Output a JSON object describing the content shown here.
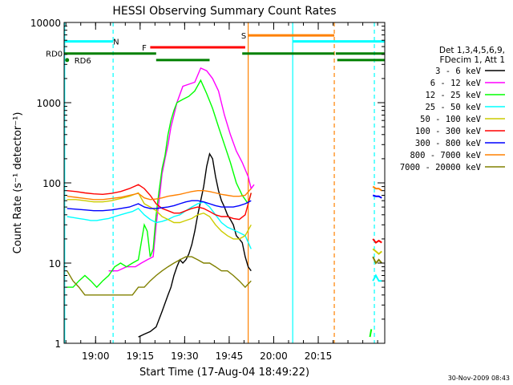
{
  "chart_data": {
    "type": "line",
    "title": "HESSI Observing Summary Count Rates",
    "xlabel": "Start Time (17-Aug-04 18:49:22)",
    "ylabel": "Count Rate (s⁻¹ detector⁻¹)",
    "x_unit": "minutes since 18:49:22",
    "xlim": [
      0,
      108
    ],
    "ylim": [
      1,
      10000
    ],
    "y_scale": "log",
    "x_ticks": [
      {
        "label": "19:00",
        "value": 10.6
      },
      {
        "label": "19:15",
        "value": 25.6
      },
      {
        "label": "19:30",
        "value": 40.6
      },
      {
        "label": "19:45",
        "value": 55.6
      },
      {
        "label": "20:00",
        "value": 70.6
      },
      {
        "label": "20:15",
        "value": 85.6
      }
    ],
    "y_ticks": [
      {
        "label": "1",
        "value": 1
      },
      {
        "label": "10",
        "value": 10
      },
      {
        "label": "100",
        "value": 100
      },
      {
        "label": "1000",
        "value": 1000
      },
      {
        "label": "10000",
        "value": 10000
      }
    ],
    "legend_header": [
      "Det 1,3,4,5,6,9,",
      "FDecim 1, Att 1"
    ],
    "footer_date": "30-Nov-2009 08:43",
    "series": [
      {
        "name": "3 - 6 keV",
        "color": "#000000",
        "x": [
          25,
          27,
          29,
          31,
          33,
          35,
          36,
          37,
          38,
          39,
          40,
          41,
          42,
          43,
          44,
          45,
          46,
          47,
          48,
          49,
          50,
          51,
          52,
          53,
          54,
          55,
          56,
          57,
          58,
          59,
          60,
          61,
          62,
          63
        ],
        "y": [
          1.2,
          1.3,
          1.4,
          1.6,
          2.5,
          4,
          5,
          7,
          9,
          11,
          10,
          11,
          13,
          17,
          25,
          40,
          60,
          90,
          160,
          230,
          200,
          120,
          80,
          60,
          50,
          40,
          35,
          30,
          22,
          20,
          18,
          12,
          9,
          8
        ]
      },
      {
        "name": "6 - 12 keV",
        "color": "#ff00ff",
        "x": [
          15,
          18,
          21,
          24,
          26,
          28,
          30,
          31,
          32,
          33,
          34,
          35,
          36,
          37,
          38,
          40,
          42,
          44,
          46,
          48,
          50,
          52,
          54,
          56,
          58,
          60,
          62,
          63,
          64
        ],
        "y": [
          8,
          8,
          9,
          9,
          10,
          11,
          12,
          30,
          60,
          130,
          200,
          300,
          500,
          700,
          1000,
          1600,
          1700,
          1800,
          2700,
          2500,
          2000,
          1400,
          700,
          400,
          250,
          180,
          120,
          85,
          95
        ]
      },
      {
        "name": "12 - 25 keV",
        "color": "#00ff00",
        "x": [
          1,
          3,
          5,
          7,
          9,
          11,
          13,
          15,
          17,
          19,
          21,
          23,
          25,
          27,
          28,
          29,
          30,
          31,
          32,
          33,
          34,
          35,
          36,
          37,
          38,
          40,
          42,
          44,
          46,
          48,
          50,
          52,
          54,
          56,
          58,
          60,
          62,
          63
        ],
        "y": [
          5,
          5,
          6,
          7,
          6,
          5,
          6,
          7,
          9,
          10,
          9,
          10,
          11,
          30,
          25,
          12,
          15,
          40,
          80,
          150,
          220,
          400,
          600,
          800,
          1000,
          1100,
          1200,
          1400,
          1900,
          1300,
          850,
          500,
          300,
          180,
          100,
          70,
          55,
          75
        ]
      },
      {
        "name": "25 - 50 keV",
        "color": "#00ffff",
        "x": [
          1,
          3,
          5,
          7,
          9,
          11,
          13,
          15,
          17,
          19,
          21,
          23,
          25,
          27,
          29,
          31,
          33,
          35,
          37,
          39,
          41,
          43,
          45,
          47,
          49,
          51,
          53,
          55,
          57,
          59,
          61,
          63
        ],
        "y": [
          38,
          37,
          36,
          35,
          34,
          34,
          35,
          36,
          38,
          40,
          42,
          44,
          48,
          40,
          35,
          32,
          33,
          35,
          38,
          40,
          45,
          50,
          55,
          58,
          50,
          40,
          32,
          28,
          26,
          24,
          22,
          15
        ]
      },
      {
        "name": "50 - 100 keV",
        "color": "#cccc00",
        "x": [
          1,
          4,
          7,
          10,
          13,
          16,
          19,
          22,
          25,
          27,
          29,
          31,
          33,
          35,
          37,
          39,
          41,
          43,
          45,
          47,
          49,
          51,
          53,
          55,
          57,
          59,
          61,
          63
        ],
        "y": [
          62,
          62,
          60,
          58,
          58,
          60,
          64,
          68,
          75,
          55,
          50,
          45,
          38,
          35,
          32,
          32,
          34,
          36,
          40,
          42,
          38,
          30,
          25,
          22,
          20,
          20,
          22,
          30
        ]
      },
      {
        "name": "100 - 300 keV",
        "color": "#ff0000",
        "x": [
          1,
          4,
          7,
          10,
          13,
          16,
          19,
          22,
          25,
          27,
          29,
          31,
          33,
          35,
          37,
          39,
          41,
          43,
          45,
          47,
          49,
          51,
          53,
          55,
          57,
          59,
          61,
          63
        ],
        "y": [
          80,
          78,
          75,
          73,
          72,
          74,
          78,
          85,
          95,
          85,
          70,
          55,
          48,
          45,
          42,
          42,
          45,
          48,
          50,
          48,
          44,
          40,
          38,
          38,
          36,
          35,
          40,
          75
        ]
      },
      {
        "name": "300 - 800 keV",
        "color": "#0000ff",
        "x": [
          1,
          4,
          7,
          10,
          13,
          16,
          19,
          22,
          25,
          27,
          29,
          31,
          33,
          35,
          37,
          39,
          41,
          43,
          45,
          47,
          49,
          51,
          53,
          55,
          57,
          59,
          61,
          63
        ],
        "y": [
          48,
          47,
          46,
          45,
          45,
          46,
          48,
          50,
          55,
          50,
          48,
          48,
          49,
          50,
          52,
          55,
          58,
          60,
          60,
          58,
          55,
          52,
          50,
          50,
          50,
          52,
          55,
          60
        ]
      },
      {
        "name": "800 - 7000 keV",
        "color": "#ff8000",
        "x": [
          1,
          4,
          7,
          10,
          13,
          16,
          19,
          22,
          25,
          27,
          29,
          31,
          33,
          35,
          37,
          39,
          41,
          43,
          45,
          47,
          49,
          51,
          53,
          55,
          57,
          59,
          61,
          63
        ],
        "y": [
          68,
          66,
          64,
          62,
          62,
          64,
          66,
          70,
          74,
          65,
          62,
          63,
          65,
          68,
          70,
          72,
          75,
          78,
          80,
          80,
          78,
          75,
          72,
          70,
          68,
          68,
          70,
          85
        ]
      },
      {
        "name": "7000 - 20000 keV",
        "color": "#808000",
        "x": [
          1,
          3,
          5,
          7,
          9,
          11,
          13,
          15,
          17,
          19,
          21,
          23,
          25,
          27,
          29,
          31,
          33,
          35,
          37,
          39,
          41,
          43,
          45,
          47,
          49,
          51,
          53,
          55,
          57,
          59,
          61,
          63
        ],
        "y": [
          8,
          6,
          5,
          4,
          4,
          4,
          4,
          4,
          4,
          4,
          4,
          4,
          5,
          5,
          6,
          7,
          8,
          9,
          10,
          11,
          12,
          12,
          11,
          10,
          10,
          9,
          8,
          8,
          7,
          6,
          5,
          6
        ]
      }
    ],
    "post_gap_series": [
      {
        "color": "#ff8000",
        "x": [
          104,
          105,
          106,
          107
        ],
        "y": [
          90,
          85,
          85,
          80
        ]
      },
      {
        "color": "#0000ff",
        "x": [
          104,
          105,
          106,
          107
        ],
        "y": [
          70,
          68,
          68,
          65
        ]
      },
      {
        "color": "#ff0000",
        "x": [
          104,
          105,
          106,
          107
        ],
        "y": [
          20,
          18,
          19,
          18
        ]
      },
      {
        "color": "#cccc00",
        "x": [
          104,
          105,
          106,
          107
        ],
        "y": [
          15,
          14,
          13,
          14
        ]
      },
      {
        "color": "#808000",
        "x": [
          104,
          105,
          106,
          107
        ],
        "y": [
          12,
          10,
          11,
          10
        ]
      },
      {
        "color": "#00ffff",
        "x": [
          104,
          105,
          106,
          107
        ],
        "y": [
          6,
          7,
          6,
          6
        ]
      },
      {
        "color": "#00ff00",
        "x": [
          103,
          103.5
        ],
        "y": [
          1.2,
          1.5
        ]
      }
    ],
    "flag_bars": [
      {
        "label": "N",
        "color": "#00ffff",
        "segments": [
          [
            0,
            16.5
          ],
          [
            77,
            108
          ]
        ],
        "y_level": 5800,
        "label_at": 17.5
      },
      {
        "label": "F",
        "color": "#ff0000",
        "segments": [
          [
            29,
            61
          ]
        ],
        "y_level": 4900,
        "label_at": 27
      },
      {
        "label": "S",
        "color": "#ff8000",
        "segments": [
          [
            62,
            91
          ]
        ],
        "y_level": 6900,
        "label_at": 60.5
      },
      {
        "label": "RD0",
        "color": "#008000",
        "segments": [
          [
            0,
            31
          ],
          [
            60,
            91
          ],
          [
            91.5,
            108
          ]
        ],
        "y_level": 4100,
        "label_at": -0.5
      },
      {
        "label": "RD6",
        "color": "#008000",
        "segments": [
          [
            31,
            49
          ],
          [
            92,
            108
          ]
        ],
        "y_level": 3400,
        "label_at": 2.5
      }
    ],
    "vertical_markers": [
      {
        "x": 0.2,
        "color": "#00ffff",
        "style": "solid"
      },
      {
        "x": 16.5,
        "color": "#00ffff",
        "style": "dashed"
      },
      {
        "x": 62,
        "color": "#ff8000",
        "style": "solid"
      },
      {
        "x": 77,
        "color": "#00ffff",
        "style": "solid"
      },
      {
        "x": 91,
        "color": "#ff8000",
        "style": "dashed"
      },
      {
        "x": 104.5,
        "color": "#00ffff",
        "style": "dashed"
      }
    ]
  }
}
